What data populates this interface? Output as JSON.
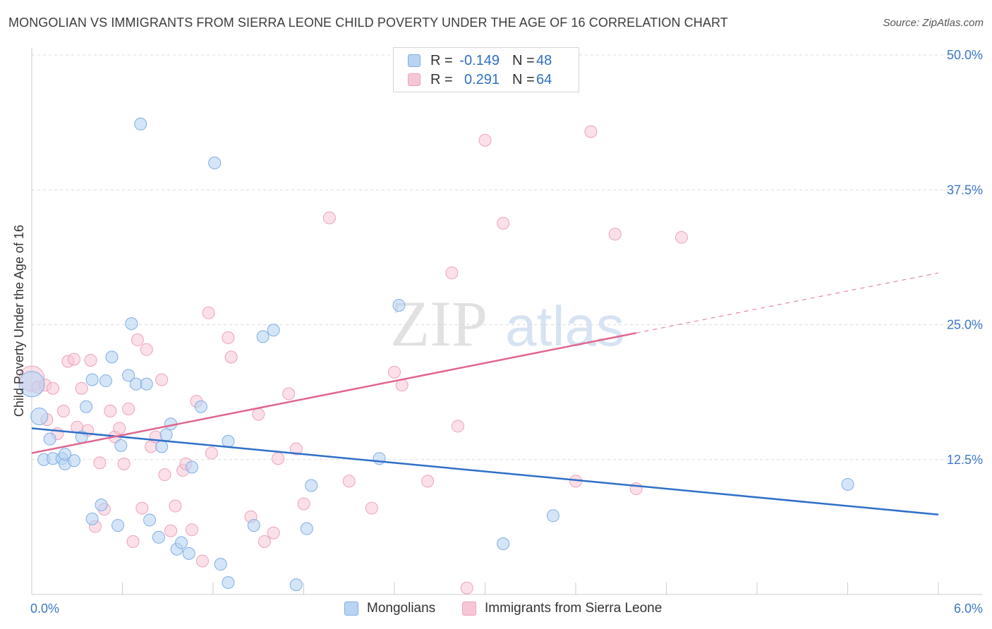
{
  "header": {
    "title": "MONGOLIAN VS IMMIGRANTS FROM SIERRA LEONE CHILD POVERTY UNDER THE AGE OF 16 CORRELATION CHART",
    "source": "Source: ZipAtlas.com"
  },
  "legend": {
    "r_label": "R =",
    "n_label": "N =",
    "rows": [
      {
        "r": "-0.149",
        "n": "48"
      },
      {
        "r": "0.291",
        "n": "64"
      }
    ]
  },
  "watermark": {
    "part1": "ZIP",
    "part2": "atlas"
  },
  "colors": {
    "blue_fill": "#b9d3f3",
    "blue_stroke": "#7eaee3",
    "blue_line": "#2e6fc9",
    "pink_fill": "#f7c6d6",
    "pink_stroke": "#eda2bc",
    "pink_line": "#e0668f",
    "axis_label": "#3a78c9",
    "grid": "#dcdcdc"
  },
  "chart_data": {
    "type": "scatter",
    "ylabel": "Child Poverty Under the Age of 16",
    "xlim": [
      0,
      6
    ],
    "ylim": [
      0,
      50
    ],
    "x_tick_labels": [
      "0.0%",
      "6.0%"
    ],
    "y_ticks": [
      12.5,
      25.0,
      37.5,
      50.0
    ],
    "y_tick_labels": [
      "12.5%",
      "25.0%",
      "37.5%",
      "50.0%"
    ],
    "grid": true,
    "legend_position": "top-center",
    "series": [
      {
        "name": "Mongolians",
        "color": "#b9d3f3",
        "trend": {
          "x0": 0,
          "y0": 15.4,
          "x1": 6,
          "y1": 7.4,
          "style": "solid"
        },
        "points": [
          [
            0.0,
            19.5
          ],
          [
            0.05,
            16.5
          ],
          [
            0.12,
            14.4
          ],
          [
            0.08,
            12.5
          ],
          [
            0.14,
            12.6
          ],
          [
            0.2,
            12.6
          ],
          [
            0.22,
            12.1
          ],
          [
            0.28,
            12.4
          ],
          [
            0.22,
            13.0
          ],
          [
            0.33,
            14.6
          ],
          [
            0.36,
            17.4
          ],
          [
            0.4,
            19.9
          ],
          [
            0.49,
            19.8
          ],
          [
            0.53,
            22.0
          ],
          [
            0.46,
            8.3
          ],
          [
            0.4,
            7.0
          ],
          [
            0.57,
            6.4
          ],
          [
            0.59,
            13.8
          ],
          [
            0.64,
            20.3
          ],
          [
            0.69,
            19.5
          ],
          [
            0.66,
            25.1
          ],
          [
            0.72,
            43.6
          ],
          [
            0.76,
            19.5
          ],
          [
            0.78,
            6.9
          ],
          [
            0.84,
            5.3
          ],
          [
            0.86,
            13.7
          ],
          [
            0.89,
            14.8
          ],
          [
            0.92,
            15.8
          ],
          [
            0.96,
            4.2
          ],
          [
            0.99,
            4.8
          ],
          [
            1.04,
            3.8
          ],
          [
            1.06,
            11.8
          ],
          [
            1.12,
            17.4
          ],
          [
            1.21,
            40.0
          ],
          [
            1.25,
            2.8
          ],
          [
            1.3,
            1.1
          ],
          [
            1.3,
            14.2
          ],
          [
            1.47,
            6.4
          ],
          [
            1.53,
            23.9
          ],
          [
            1.6,
            24.5
          ],
          [
            1.75,
            0.9
          ],
          [
            1.82,
            6.1
          ],
          [
            1.85,
            10.1
          ],
          [
            2.3,
            12.6
          ],
          [
            2.43,
            26.8
          ],
          [
            3.12,
            4.7
          ],
          [
            3.45,
            7.3
          ],
          [
            5.4,
            10.2
          ]
        ]
      },
      {
        "name": "Immigrants from Sierra Leone",
        "color": "#f7c6d6",
        "trend": {
          "x0": 0,
          "y0": 13.1,
          "x1": 6,
          "y1": 29.8,
          "solid_until_x": 4.0,
          "style": "solid-then-dashed"
        },
        "points": [
          [
            0.0,
            20.0
          ],
          [
            0.04,
            19.2
          ],
          [
            0.09,
            19.4
          ],
          [
            0.1,
            16.2
          ],
          [
            0.14,
            19.1
          ],
          [
            0.17,
            14.9
          ],
          [
            0.21,
            17.0
          ],
          [
            0.24,
            21.6
          ],
          [
            0.28,
            21.8
          ],
          [
            0.3,
            15.5
          ],
          [
            0.33,
            19.1
          ],
          [
            0.37,
            15.2
          ],
          [
            0.39,
            21.7
          ],
          [
            0.42,
            6.3
          ],
          [
            0.45,
            12.2
          ],
          [
            0.48,
            7.9
          ],
          [
            0.52,
            17.0
          ],
          [
            0.55,
            14.6
          ],
          [
            0.58,
            15.4
          ],
          [
            0.61,
            12.1
          ],
          [
            0.64,
            17.2
          ],
          [
            0.67,
            4.9
          ],
          [
            0.7,
            23.6
          ],
          [
            0.73,
            8.0
          ],
          [
            0.76,
            22.7
          ],
          [
            0.79,
            13.7
          ],
          [
            0.82,
            14.6
          ],
          [
            0.86,
            19.9
          ],
          [
            0.88,
            11.1
          ],
          [
            0.92,
            5.9
          ],
          [
            0.95,
            8.2
          ],
          [
            1.0,
            11.5
          ],
          [
            1.02,
            12.1
          ],
          [
            1.06,
            6.0
          ],
          [
            1.09,
            17.9
          ],
          [
            1.13,
            3.1
          ],
          [
            1.17,
            26.1
          ],
          [
            1.19,
            13.1
          ],
          [
            1.3,
            23.8
          ],
          [
            1.32,
            22.0
          ],
          [
            1.45,
            7.2
          ],
          [
            1.5,
            16.7
          ],
          [
            1.54,
            4.9
          ],
          [
            1.6,
            5.7
          ],
          [
            1.63,
            12.6
          ],
          [
            1.7,
            18.6
          ],
          [
            1.75,
            13.5
          ],
          [
            1.8,
            8.4
          ],
          [
            1.97,
            34.9
          ],
          [
            2.1,
            10.5
          ],
          [
            2.25,
            8.0
          ],
          [
            2.4,
            20.6
          ],
          [
            2.45,
            19.4
          ],
          [
            2.62,
            10.5
          ],
          [
            2.78,
            29.8
          ],
          [
            2.82,
            15.6
          ],
          [
            2.88,
            0.6
          ],
          [
            3.0,
            42.1
          ],
          [
            3.12,
            34.4
          ],
          [
            3.6,
            10.5
          ],
          [
            3.7,
            42.9
          ],
          [
            3.86,
            33.4
          ],
          [
            4.0,
            9.8
          ],
          [
            4.3,
            33.1
          ]
        ]
      }
    ]
  }
}
